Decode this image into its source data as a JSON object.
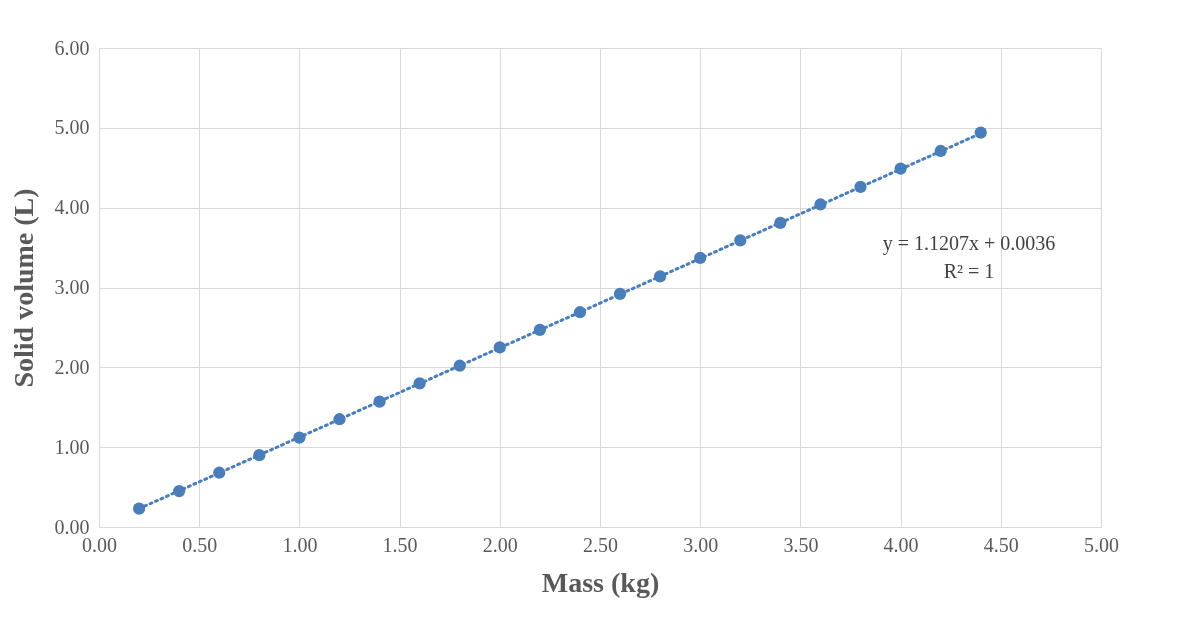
{
  "chart_data": {
    "type": "scatter",
    "xlabel": "Mass (kg)",
    "ylabel": "Solid volume (L)",
    "xlim": [
      0,
      5
    ],
    "ylim": [
      0,
      6
    ],
    "xticks": [
      {
        "value": 0,
        "label": "0.00"
      },
      {
        "value": 0.5,
        "label": "0.50"
      },
      {
        "value": 1,
        "label": "1.00"
      },
      {
        "value": 1.5,
        "label": "1.50"
      },
      {
        "value": 2,
        "label": "2.00"
      },
      {
        "value": 2.5,
        "label": "2.50"
      },
      {
        "value": 3,
        "label": "3.00"
      },
      {
        "value": 3.5,
        "label": "3.50"
      },
      {
        "value": 4,
        "label": "4.00"
      },
      {
        "value": 4.5,
        "label": "4.50"
      },
      {
        "value": 5,
        "label": "5.00"
      }
    ],
    "yticks": [
      {
        "value": 0,
        "label": "0.00"
      },
      {
        "value": 1,
        "label": "1.00"
      },
      {
        "value": 2,
        "label": "2.00"
      },
      {
        "value": 3,
        "label": "3.00"
      },
      {
        "value": 4,
        "label": "4.00"
      },
      {
        "value": 5,
        "label": "5.00"
      },
      {
        "value": 6,
        "label": "6.00"
      }
    ],
    "grid": true,
    "series": [
      {
        "color": "#4a7ebb",
        "marker": "circle",
        "x": [
          0.2,
          0.4,
          0.6,
          0.8,
          1.0,
          1.2,
          1.4,
          1.6,
          1.8,
          2.0,
          2.2,
          2.4,
          2.6,
          2.8,
          3.0,
          3.2,
          3.4,
          3.6,
          3.8,
          4.0,
          4.2,
          4.4
        ],
        "values": [
          0.23,
          0.45,
          0.68,
          0.9,
          1.12,
          1.35,
          1.57,
          1.8,
          2.02,
          2.25,
          2.47,
          2.69,
          2.92,
          3.14,
          3.37,
          3.59,
          3.81,
          4.04,
          4.26,
          4.49,
          4.71,
          4.94
        ]
      },
      {
        "type": "line",
        "color": "#4a7ebb",
        "line_style": "dotted",
        "x": [
          0.2,
          4.4
        ],
        "values": [
          0.23,
          4.93
        ]
      }
    ],
    "annotations": [
      "y = 1.1207x + 0.0036",
      "R² = 1"
    ]
  }
}
